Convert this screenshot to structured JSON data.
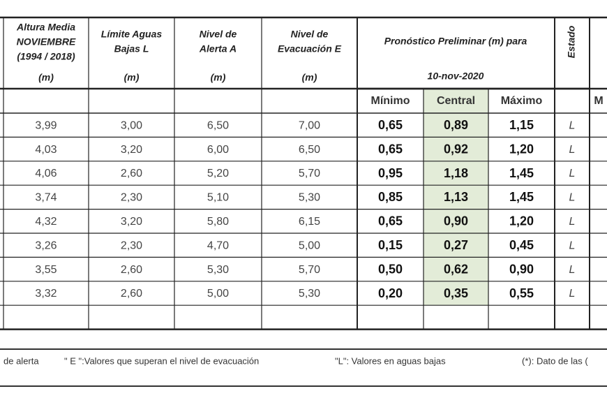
{
  "header": {
    "columns": [
      {
        "lines": [
          "Altura Media",
          "NOVIEMBRE",
          "(1994 / 2018)"
        ],
        "unit": "(m)"
      },
      {
        "lines": [
          "Límite Aguas",
          "Bajas L"
        ],
        "unit": "(m)"
      },
      {
        "lines": [
          "Nivel de",
          "Alerta A"
        ],
        "unit": "(m)"
      },
      {
        "lines": [
          "Nivel de",
          "Evacuación E"
        ],
        "unit": "(m)"
      }
    ],
    "forecast_title": "Pronóstico Preliminar (m) para",
    "forecast_date": "10-nov-2020",
    "state": "Estado",
    "subheaders": [
      "Mínimo",
      "Central",
      "Máximo"
    ],
    "cut_subheader": "M"
  },
  "table": {
    "rows": [
      [
        "3,99",
        "3,00",
        "6,50",
        "7,00",
        "0,65",
        "0,89",
        "1,15",
        "L"
      ],
      [
        "4,03",
        "3,20",
        "6,00",
        "6,50",
        "0,65",
        "0,92",
        "1,20",
        "L"
      ],
      [
        "4,06",
        "2,60",
        "5,20",
        "5,70",
        "0,95",
        "1,18",
        "1,45",
        "L"
      ],
      [
        "3,74",
        "2,30",
        "5,10",
        "5,30",
        "0,85",
        "1,13",
        "1,45",
        "L"
      ],
      [
        "4,32",
        "3,20",
        "5,80",
        "6,15",
        "0,65",
        "0,90",
        "1,20",
        "L"
      ],
      [
        "3,26",
        "2,30",
        "4,70",
        "5,00",
        "0,15",
        "0,27",
        "0,45",
        "L"
      ],
      [
        "3,55",
        "2,60",
        "5,30",
        "5,70",
        "0,50",
        "0,62",
        "0,90",
        "L"
      ],
      [
        "3,32",
        "2,60",
        "5,00",
        "5,30",
        "0,20",
        "0,35",
        "0,55",
        "L"
      ]
    ]
  },
  "footer": {
    "notes": [
      "de alerta",
      "\" E \":Valores que superan el nivel de evacuación",
      "\"L\": Valores en aguas bajas",
      "(*): Dato de las ("
    ]
  }
}
